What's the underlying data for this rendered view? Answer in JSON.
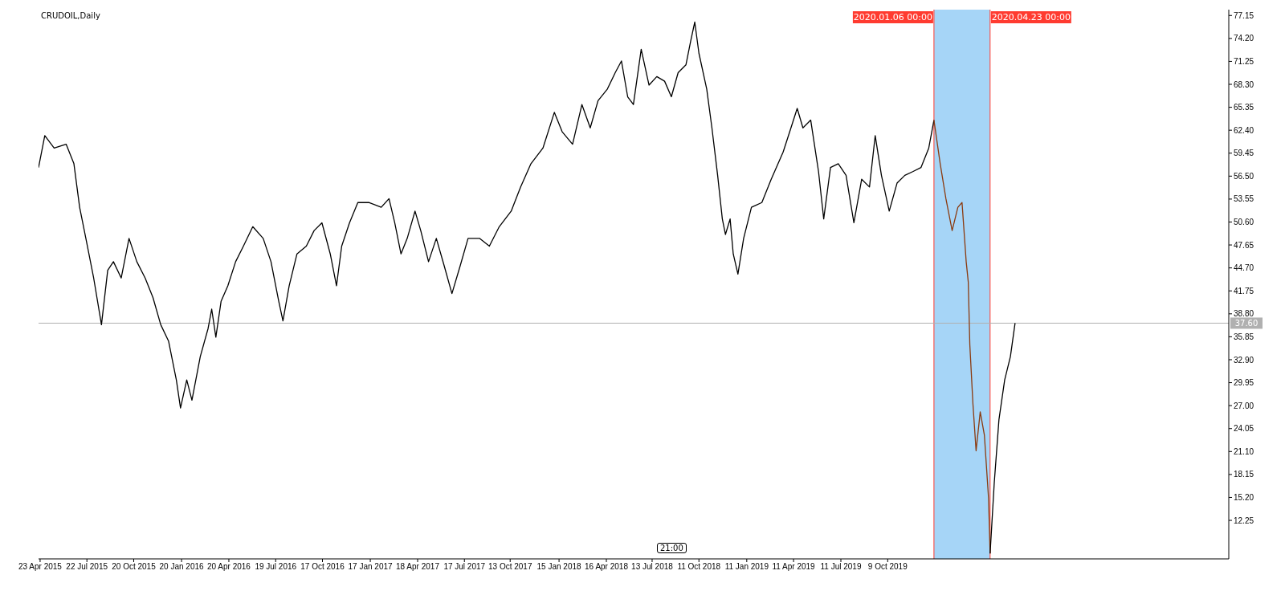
{
  "chart_data": {
    "type": "line",
    "title": "CRUDOIL,Daily",
    "annotations": [
      "21:00"
    ],
    "xlim": [
      "2015-04-20",
      "2021-07-26"
    ],
    "xticks": [
      {
        "value": "2015-04-23",
        "label": "23 Apr 2015"
      },
      {
        "value": "2015-07-22",
        "label": "22 Jul 2015"
      },
      {
        "value": "2015-10-20",
        "label": "20 Oct 2015"
      },
      {
        "value": "2016-01-20",
        "label": "20 Jan 2016"
      },
      {
        "value": "2016-04-20",
        "label": "20 Apr 2016"
      },
      {
        "value": "2016-07-19",
        "label": "19 Jul 2016"
      },
      {
        "value": "2016-10-17",
        "label": "17 Oct 2016"
      },
      {
        "value": "2017-01-17",
        "label": "17 Jan 2017"
      },
      {
        "value": "2017-04-18",
        "label": "18 Apr 2017"
      },
      {
        "value": "2017-07-17",
        "label": "17 Jul 2017"
      },
      {
        "value": "2017-10-13",
        "label": "13 Oct 2017"
      },
      {
        "value": "2018-01-15",
        "label": "15 Jan 2018"
      },
      {
        "value": "2018-04-16",
        "label": "16 Apr 2018"
      },
      {
        "value": "2018-07-13",
        "label": "13 Jul 2018"
      },
      {
        "value": "2018-10-11",
        "label": "11 Oct 2018"
      },
      {
        "value": "2019-01-11",
        "label": "11 Jan 2019"
      },
      {
        "value": "2019-04-11",
        "label": "11 Apr 2019"
      },
      {
        "value": "2019-07-11",
        "label": "11 Jul 2019"
      },
      {
        "value": "2019-10-09",
        "label": "9 Oct 2019"
      }
    ],
    "ylim": [
      7.3,
      77.9
    ],
    "yticks": [
      {
        "value": 12.25,
        "label": "12.25"
      },
      {
        "value": 15.2,
        "label": "15.20"
      },
      {
        "value": 18.15,
        "label": "18.15"
      },
      {
        "value": 21.1,
        "label": "21.10"
      },
      {
        "value": 24.05,
        "label": "24.05"
      },
      {
        "value": 27,
        "label": "27.00"
      },
      {
        "value": 29.95,
        "label": "29.95"
      },
      {
        "value": 32.9,
        "label": "32.90"
      },
      {
        "value": 35.85,
        "label": "35.85"
      },
      {
        "value": 38.8,
        "label": "38.80"
      },
      {
        "value": 41.75,
        "label": "41.75"
      },
      {
        "value": 44.7,
        "label": "44.70"
      },
      {
        "value": 47.65,
        "label": "47.65"
      },
      {
        "value": 50.6,
        "label": "50.60"
      },
      {
        "value": 53.55,
        "label": "53.55"
      },
      {
        "value": 56.5,
        "label": "56.50"
      },
      {
        "value": 59.45,
        "label": "59.45"
      },
      {
        "value": 62.4,
        "label": "62.40"
      },
      {
        "value": 65.35,
        "label": "65.35"
      },
      {
        "value": 68.3,
        "label": "68.30"
      },
      {
        "value": 71.25,
        "label": "71.25"
      },
      {
        "value": 74.2,
        "label": "74.20"
      },
      {
        "value": 77.15,
        "label": "77.15"
      }
    ],
    "series": [
      {
        "color": "#000000",
        "x": [
          "2015-04-20",
          "2015-05-02",
          "2015-05-20",
          "2015-06-12",
          "2015-06-27",
          "2015-07-08",
          "2015-07-20",
          "2015-08-04",
          "2015-08-19",
          "2015-08-31",
          "2015-09-11",
          "2015-09-26",
          "2015-10-11",
          "2015-10-26",
          "2015-11-11",
          "2015-11-26",
          "2015-12-11",
          "2015-12-26",
          "2016-01-10",
          "2016-01-18",
          "2016-01-30",
          "2016-02-09",
          "2016-02-25",
          "2016-03-11",
          "2016-03-18",
          "2016-03-26",
          "2016-04-05",
          "2016-04-18",
          "2016-05-03",
          "2016-05-18",
          "2016-06-05",
          "2016-06-25",
          "2016-07-10",
          "2016-07-25",
          "2016-08-02",
          "2016-08-14",
          "2016-08-29",
          "2016-09-16",
          "2016-10-01",
          "2016-10-16",
          "2016-11-01",
          "2016-11-13",
          "2016-11-23",
          "2016-12-08",
          "2016-12-24",
          "2017-01-15",
          "2017-02-07",
          "2017-02-22",
          "2017-03-05",
          "2017-03-17",
          "2017-03-29",
          "2017-04-13",
          "2017-04-24",
          "2017-05-09",
          "2017-05-24",
          "2017-06-08",
          "2017-06-23",
          "2017-07-09",
          "2017-07-24",
          "2017-08-15",
          "2017-09-03",
          "2017-09-22",
          "2017-10-15",
          "2017-11-02",
          "2017-11-22",
          "2017-12-15",
          "2018-01-06",
          "2018-01-21",
          "2018-02-10",
          "2018-02-28",
          "2018-03-16",
          "2018-03-31",
          "2018-04-18",
          "2018-05-03",
          "2018-05-15",
          "2018-05-27",
          "2018-06-07",
          "2018-06-22",
          "2018-07-07",
          "2018-07-22",
          "2018-08-06",
          "2018-08-19",
          "2018-09-01",
          "2018-09-16",
          "2018-09-25",
          "2018-10-03",
          "2018-10-11",
          "2018-10-26",
          "2018-11-05",
          "2018-11-16",
          "2018-11-25",
          "2018-12-01",
          "2018-12-10",
          "2018-12-16",
          "2018-12-25",
          "2019-01-05",
          "2019-01-20",
          "2019-02-09",
          "2019-02-27",
          "2019-03-22",
          "2019-04-06",
          "2019-04-18",
          "2019-04-29",
          "2019-05-14",
          "2019-05-29",
          "2019-06-08",
          "2019-06-21",
          "2019-07-06",
          "2019-07-21",
          "2019-08-05",
          "2019-08-20",
          "2019-09-04",
          "2019-09-15",
          "2019-09-27",
          "2019-10-12",
          "2019-10-27",
          "2019-11-11",
          "2019-11-27",
          "2019-12-12",
          "2019-12-27",
          "2020-01-06"
        ],
        "values": [
          57.6,
          61.7,
          60.1,
          60.6,
          58.1,
          52.5,
          48.5,
          43.4,
          37.4,
          44.4,
          45.5,
          43.4,
          48.5,
          45.5,
          43.4,
          40.9,
          37.4,
          35.3,
          30.3,
          26.7,
          30.3,
          27.7,
          33.3,
          36.9,
          39.4,
          35.8,
          40.4,
          42.4,
          45.5,
          47.5,
          50.0,
          48.5,
          45.5,
          40.4,
          37.9,
          42.4,
          46.5,
          47.5,
          49.5,
          50.5,
          46.5,
          42.4,
          47.5,
          50.5,
          53.1,
          53.1,
          52.5,
          53.6,
          50.5,
          46.5,
          48.5,
          52.0,
          49.5,
          45.5,
          48.5,
          45.0,
          41.4,
          45.0,
          48.5,
          48.5,
          47.5,
          50.0,
          52.0,
          55.1,
          58.1,
          60.1,
          64.7,
          62.2,
          60.6,
          65.7,
          62.7,
          66.2,
          67.7,
          69.8,
          71.3,
          66.7,
          65.7,
          72.8,
          68.2,
          69.3,
          68.7,
          66.7,
          69.8,
          70.8,
          73.8,
          76.3,
          72.3,
          67.7,
          62.7,
          56.6,
          51.0,
          49.0,
          51.0,
          46.5,
          43.9,
          48.5,
          52.5,
          53.1,
          56.1,
          59.6,
          62.7,
          65.2,
          62.7,
          63.7,
          57.1,
          51.0,
          57.6,
          58.1,
          56.6,
          50.5,
          56.1,
          55.1,
          61.7,
          56.6,
          52.0,
          55.6,
          56.6,
          57.1,
          57.6,
          60.1,
          63.7
        ]
      },
      {
        "color": "#8b3a0f",
        "x": [
          "2020-01-06",
          "2020-01-18",
          "2020-01-29",
          "2020-02-10",
          "2020-02-21",
          "2020-02-29",
          "2020-03-08",
          "2020-03-12",
          "2020-03-15",
          "2020-03-21",
          "2020-03-27",
          "2020-04-04",
          "2020-04-12",
          "2020-04-20",
          "2020-04-23"
        ],
        "values": [
          63.7,
          58.1,
          53.6,
          49.5,
          52.5,
          53.1,
          45.5,
          42.9,
          34.8,
          27.2,
          21.2,
          26.2,
          23.2,
          15.1,
          8.0
        ]
      },
      {
        "color": "#000000",
        "x": [
          "2020-04-23",
          "2020-05-01",
          "2020-05-10",
          "2020-05-21",
          "2020-06-01",
          "2020-06-10"
        ],
        "values": [
          8.0,
          17.1,
          25.2,
          30.3,
          33.3,
          37.6
        ]
      }
    ],
    "ref_lines": [
      {
        "axis": "x",
        "value": "2020-01-06",
        "label": "2020.01.06 00:00",
        "color": "#ff3b30"
      },
      {
        "axis": "x",
        "value": "2020-04-23",
        "label": "2020.04.23 00:00",
        "color": "#ff3b30"
      },
      {
        "axis": "y",
        "value": 37.6,
        "label": "37.60",
        "color": "#b0b0b0"
      }
    ],
    "bands": [
      {
        "axis": "x",
        "from": "2020-01-06",
        "to": "2020-04-23",
        "color": "#a6d5f7"
      }
    ]
  }
}
